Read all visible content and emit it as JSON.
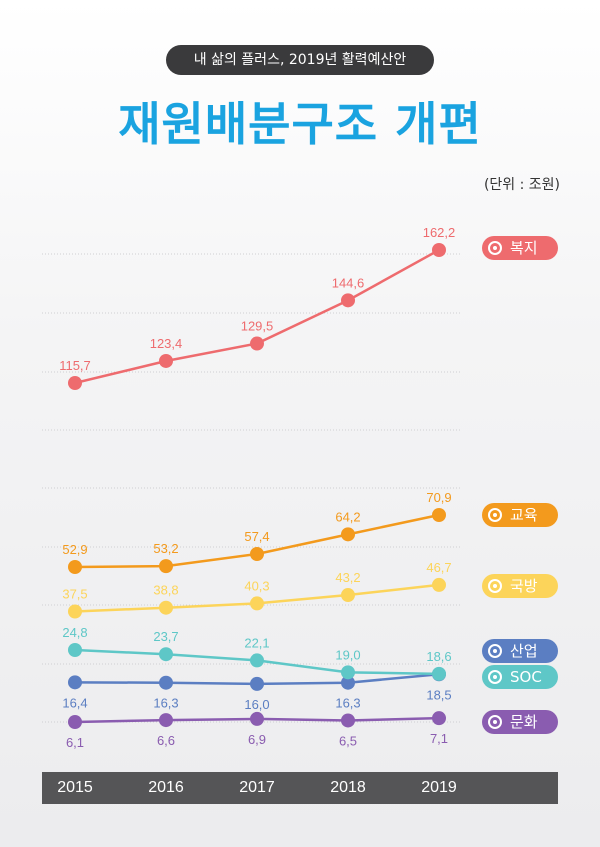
{
  "header": {
    "subtitle": "내 삶의 플러스, 2019년 활력예산안",
    "title": "재원배분구조 개편",
    "unit": "(단위 : 조원)"
  },
  "chart_data": {
    "type": "line",
    "categories": [
      "2015",
      "2016",
      "2017",
      "2018",
      "2019"
    ],
    "series": [
      {
        "name": "복지",
        "color": "#ee6b6e",
        "values": [
          115.7,
          123.4,
          129.5,
          144.6,
          162.2
        ],
        "labels": [
          "115,7",
          "123,4",
          "129,5",
          "144,6",
          "162,2"
        ]
      },
      {
        "name": "교육",
        "color": "#f39a1d",
        "values": [
          52.9,
          53.2,
          57.4,
          64.2,
          70.9
        ],
        "labels": [
          "52,9",
          "53,2",
          "57,4",
          "64,2",
          "70,9"
        ]
      },
      {
        "name": "국방",
        "color": "#fcd45a",
        "values": [
          37.5,
          38.8,
          40.3,
          43.2,
          46.7
        ],
        "labels": [
          "37,5",
          "38,8",
          "40,3",
          "43,2",
          "46,7"
        ]
      },
      {
        "name": "산업",
        "color": "#5b7ec2",
        "values": [
          16.4,
          16.3,
          16.0,
          16.3,
          18.5
        ],
        "labels": [
          "16,4",
          "16,3",
          "16,0",
          "16,3",
          "18,5"
        ]
      },
      {
        "name": "SOC",
        "color": "#5ec7c7",
        "values": [
          24.8,
          23.7,
          22.1,
          19.0,
          18.6
        ],
        "labels": [
          "24,8",
          "23,7",
          "22,1",
          "19,0",
          "18,6"
        ]
      },
      {
        "name": "문화",
        "color": "#8a5cb0",
        "values": [
          6.1,
          6.6,
          6.9,
          6.5,
          7.1
        ],
        "labels": [
          "6,1",
          "6,6",
          "6,9",
          "6,5",
          "7,1"
        ]
      }
    ],
    "grid": true,
    "legend_placement": "right"
  }
}
